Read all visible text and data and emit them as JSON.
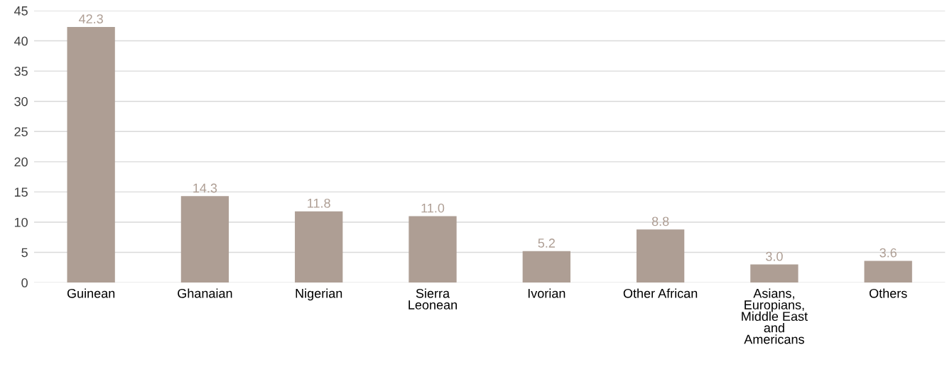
{
  "chart_data": {
    "type": "bar",
    "categories": [
      "Guinean",
      "Ghanaian",
      "Nigerian",
      "Sierra\nLeonean",
      "Ivorian",
      "Other African",
      "Asians,\nEuropians,\nMiddle East\nand\nAmericans",
      "Others"
    ],
    "values": [
      42.3,
      14.3,
      11.8,
      11.0,
      5.2,
      8.8,
      3.0,
      3.6
    ],
    "value_labels": [
      "42.3",
      "14.3",
      "11.8",
      "11.0",
      "5.2",
      "8.8",
      "3.0",
      "3.6"
    ],
    "color": "#ae9e94",
    "ylim": [
      0,
      45
    ],
    "yticks": [
      0,
      5,
      10,
      15,
      20,
      25,
      30,
      35,
      40,
      45
    ],
    "grid": "y"
  }
}
